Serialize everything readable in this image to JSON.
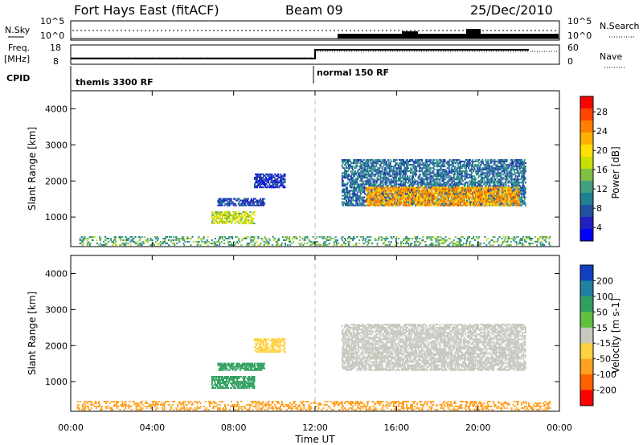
{
  "header": {
    "station": "Fort Hays East (fitACF)",
    "beam": "Beam 09",
    "date": "25/Dec/2010"
  },
  "summary_panels": {
    "nsky_label": "N.Sky",
    "nsearch_label": "N.Search",
    "freq_label_1": "Freq.",
    "freq_label_2": "[MHz]",
    "nave_label": "Nave",
    "cpid_label": "CPID",
    "log_ticks": [
      "10^5",
      "10^0"
    ],
    "freq_ticks": [
      "18",
      "8"
    ],
    "nave_ticks": [
      "60",
      "0"
    ],
    "cpid_segments": [
      {
        "name": "themis 3300 RF",
        "start": "00:00",
        "end": "12:00"
      },
      {
        "name": "normal 150 RF",
        "start": "12:00",
        "end": "24:00"
      }
    ],
    "freq_mhz": [
      {
        "time": "00:00",
        "value": 11
      },
      {
        "time": "12:00",
        "value": 11
      },
      {
        "time": "12:00",
        "value": 15.5
      },
      {
        "time": "22:30",
        "value": 15.5
      }
    ]
  },
  "chart_data": [
    {
      "type": "heatmap",
      "title": "Power",
      "ylabel": "Slant Range [km]",
      "xlabel": "",
      "colorbar_label": "Power [dB]",
      "colorbar_ticks": [
        "28",
        "24",
        "20",
        "16",
        "12",
        "8",
        "4"
      ],
      "colorbar_colors": [
        "#ff0000",
        "#ff4400",
        "#ff8000",
        "#ffb000",
        "#ffe000",
        "#c8e000",
        "#80c040",
        "#40a080",
        "#208090",
        "#2050a0",
        "#2020c0",
        "#0000ff"
      ],
      "ylim": [
        180,
        4500
      ],
      "yticks": [
        "1000",
        "2000",
        "3000",
        "4000"
      ],
      "xlim": [
        "00:00",
        "24:00"
      ],
      "xticks": [
        "00:00",
        "04:00",
        "08:00",
        "12:00",
        "16:00",
        "20:00",
        "00:00"
      ],
      "bands": [
        {
          "t_start": 6.9,
          "t_end": 9.0,
          "r_min": 800,
          "r_max": 1150,
          "value": 16
        },
        {
          "t_start": 7.2,
          "t_end": 9.5,
          "r_min": 1300,
          "r_max": 1500,
          "value": 6
        },
        {
          "t_start": 9.0,
          "t_end": 10.5,
          "r_min": 1800,
          "r_max": 2200,
          "value": 4
        },
        {
          "t_start": 13.3,
          "t_end": 22.3,
          "r_min": 1300,
          "r_max": 2600,
          "value": 8
        },
        {
          "t_start": 14.5,
          "t_end": 22.0,
          "r_min": 1300,
          "r_max": 1800,
          "value": 22
        },
        {
          "t_start": 0.3,
          "t_end": 23.5,
          "r_min": 200,
          "r_max": 450,
          "value": 12
        }
      ]
    },
    {
      "type": "heatmap",
      "title": "Velocity",
      "ylabel": "Slant Range [km]",
      "xlabel": "Time UT",
      "colorbar_label": "Velocity [m s-1]",
      "colorbar_ticks": [
        "200",
        "100",
        "50",
        "15",
        "-15",
        "-50",
        "-100",
        "-200"
      ],
      "colorbar_colors": [
        "#1040c0",
        "#2080a0",
        "#30a060",
        "#60c040",
        "#c8c8c0",
        "#ffd040",
        "#ffa020",
        "#ff6000",
        "#ff0000"
      ],
      "ylim": [
        180,
        4500
      ],
      "yticks": [
        "1000",
        "2000",
        "3000",
        "4000"
      ],
      "xlim": [
        "00:00",
        "24:00"
      ],
      "xticks": [
        "00:00",
        "04:00",
        "08:00",
        "12:00",
        "16:00",
        "20:00",
        "00:00"
      ],
      "bands": [
        {
          "t_start": 6.9,
          "t_end": 9.0,
          "r_min": 800,
          "r_max": 1150,
          "value": 60
        },
        {
          "t_start": 7.2,
          "t_end": 9.5,
          "r_min": 1300,
          "r_max": 1500,
          "value": 60
        },
        {
          "t_start": 9.0,
          "t_end": 10.5,
          "r_min": 1800,
          "r_max": 2200,
          "value": -40
        },
        {
          "t_start": 13.3,
          "t_end": 22.3,
          "r_min": 1300,
          "r_max": 2600,
          "value": 0
        },
        {
          "t_start": 0.3,
          "t_end": 23.5,
          "r_min": 200,
          "r_max": 450,
          "value": -60
        }
      ]
    }
  ]
}
